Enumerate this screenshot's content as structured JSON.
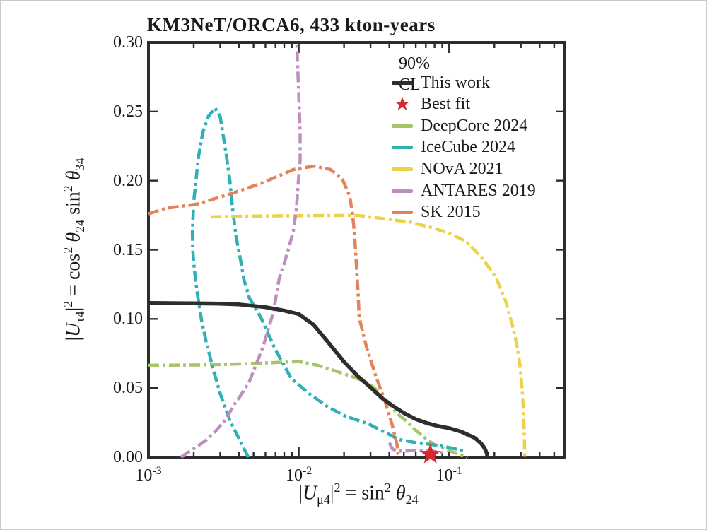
{
  "title": "KM3NeT/ORCA6, 433 kton-years",
  "legend": {
    "header": "90% CL",
    "items": [
      {
        "label": "This work",
        "color": "#2d2d2d",
        "marker": "line-solid"
      },
      {
        "label": "Best fit",
        "color": "#d7282f",
        "marker": "star"
      },
      {
        "label": "DeepCore 2024",
        "color": "#a6c468",
        "marker": "line-dashdot"
      },
      {
        "label": "IceCube 2024",
        "color": "#2eb1b6",
        "marker": "line-dashdot"
      },
      {
        "label": "NOvA 2021",
        "color": "#ecd24a",
        "marker": "line-dashdot"
      },
      {
        "label": "ANTARES 2019",
        "color": "#c08fc1",
        "marker": "line-dashdot"
      },
      {
        "label": "SK 2015",
        "color": "#e58259",
        "marker": "line-dashdot"
      }
    ]
  },
  "chart_data": {
    "type": "line",
    "title": "KM3NeT/ORCA6, 433 kton-years",
    "xlabel": "|*U*_{μ4}|^{2} = sin^{2} *θ*_{24}",
    "ylabel": "|*U*_{τ4}|^{2} = cos^{2} *θ*_{24} sin^{2} *θ*_{34}",
    "xscale": "log",
    "yscale": "linear",
    "xlim": [
      0.001,
      0.589
    ],
    "ylim": [
      0,
      0.3
    ],
    "grid": false,
    "legend_position": "upper right",
    "confidence_level": "90% CL",
    "x_ticks": [
      {
        "value": 0.001,
        "label": "10^{-3}"
      },
      {
        "value": 0.01,
        "label": "10^{-2}"
      },
      {
        "value": 0.1,
        "label": "10^{-1}"
      }
    ],
    "y_ticks": [
      {
        "value": 0.0,
        "label": "0.00"
      },
      {
        "value": 0.05,
        "label": "0.05"
      },
      {
        "value": 0.1,
        "label": "0.10"
      },
      {
        "value": 0.15,
        "label": "0.15"
      },
      {
        "value": 0.2,
        "label": "0.20"
      },
      {
        "value": 0.25,
        "label": "0.25"
      },
      {
        "value": 0.3,
        "label": "0.30"
      }
    ],
    "best_fit": {
      "name": "Best fit",
      "x": 0.075,
      "y": 0.002,
      "color": "#d7282f",
      "marker": "star"
    },
    "series": [
      {
        "name": "DeepCore 2024",
        "color": "#a6c468",
        "style": "dashdot",
        "segments": [
          [
            [
              0.001,
              0.0665
            ],
            [
              0.002,
              0.0667
            ],
            [
              0.003,
              0.067
            ],
            [
              0.005,
              0.0678
            ],
            [
              0.008,
              0.0688
            ],
            [
              0.01,
              0.0692
            ],
            [
              0.013,
              0.0668
            ],
            [
              0.016,
              0.0638
            ],
            [
              0.02,
              0.0603
            ],
            [
              0.025,
              0.0565
            ],
            [
              0.029,
              0.0537
            ],
            [
              0.035,
              0.046
            ],
            [
              0.04,
              0.0385
            ],
            [
              0.045,
              0.0317
            ],
            [
              0.052,
              0.026
            ],
            [
              0.06,
              0.0194
            ],
            [
              0.07,
              0.0135
            ],
            [
              0.08,
              0.009
            ],
            [
              0.093,
              0.0061
            ],
            [
              0.11,
              0.003
            ],
            [
              0.125,
              0.0012
            ],
            [
              0.132,
              0.0
            ]
          ]
        ]
      },
      {
        "name": "IceCube 2024",
        "color": "#2eb1b6",
        "style": "dashdot",
        "segments": [
          [
            [
              0.00462,
              0.0
            ],
            [
              0.00418,
              0.0092
            ],
            [
              0.00348,
              0.0266
            ],
            [
              0.00302,
              0.045
            ],
            [
              0.00271,
              0.0624
            ],
            [
              0.00243,
              0.0828
            ],
            [
              0.00226,
              0.0982
            ],
            [
              0.00211,
              0.1186
            ],
            [
              0.00202,
              0.1355
            ],
            [
              0.00197,
              0.15
            ],
            [
              0.00196,
              0.1626
            ],
            [
              0.002,
              0.185
            ],
            [
              0.00207,
              0.2
            ],
            [
              0.00214,
              0.216
            ],
            [
              0.0023,
              0.235
            ],
            [
              0.0025,
              0.2465
            ],
            [
              0.00277,
              0.2525
            ],
            [
              0.003,
              0.2465
            ],
            [
              0.00328,
              0.2198
            ],
            [
              0.00347,
              0.2009
            ],
            [
              0.00362,
              0.1805
            ],
            [
              0.00382,
              0.16
            ],
            [
              0.00417,
              0.138
            ],
            [
              0.0043,
              0.129
            ],
            [
              0.0047,
              0.115
            ],
            [
              0.0056,
              0.101
            ],
            [
              0.0069,
              0.079
            ],
            [
              0.0089,
              0.057
            ],
            [
              0.0114,
              0.047
            ],
            [
              0.0153,
              0.037
            ],
            [
              0.0204,
              0.0297
            ],
            [
              0.0292,
              0.024
            ],
            [
              0.0376,
              0.0179
            ],
            [
              0.0465,
              0.0128
            ],
            [
              0.0605,
              0.0105
            ],
            [
              0.086,
              0.0085
            ],
            [
              0.11,
              0.006
            ],
            [
              0.13,
              0.004
            ]
          ]
        ]
      },
      {
        "name": "NOvA 2021",
        "color": "#ecd24a",
        "style": "dashdot",
        "segments": [
          [
            [
              0.0026,
              0.1738
            ],
            [
              0.004,
              0.1742
            ],
            [
              0.008,
              0.1746
            ],
            [
              0.015,
              0.1748
            ],
            [
              0.025,
              0.1748
            ],
            [
              0.04,
              0.172
            ],
            [
              0.055,
              0.17
            ],
            [
              0.077,
              0.166
            ],
            [
              0.1,
              0.162
            ],
            [
              0.13,
              0.156
            ],
            [
              0.166,
              0.144
            ],
            [
              0.205,
              0.13
            ],
            [
              0.237,
              0.1135
            ],
            [
              0.263,
              0.096
            ],
            [
              0.283,
              0.081
            ],
            [
              0.298,
              0.064
            ],
            [
              0.308,
              0.045
            ],
            [
              0.314,
              0.028
            ],
            [
              0.317,
              0.012
            ],
            [
              0.318,
              0.0
            ]
          ]
        ]
      },
      {
        "name": "ANTARES 2019",
        "color": "#c08fc1",
        "style": "dashdot",
        "segments": [
          [
            [
              0.00165,
              0.0
            ],
            [
              0.0018,
              0.003
            ],
            [
              0.0021,
              0.0075
            ],
            [
              0.0024,
              0.012
            ],
            [
              0.0028,
              0.019
            ],
            [
              0.00325,
              0.027
            ],
            [
              0.00373,
              0.0383
            ],
            [
              0.00403,
              0.0434
            ],
            [
              0.00465,
              0.0537
            ],
            [
              0.00576,
              0.0793
            ],
            [
              0.00677,
              0.1048
            ],
            [
              0.0074,
              0.129
            ],
            [
              0.00796,
              0.1396
            ],
            [
              0.0086,
              0.1518
            ],
            [
              0.0092,
              0.1636
            ],
            [
              0.00966,
              0.1805
            ],
            [
              0.0099,
              0.1978
            ],
            [
              0.0102,
              0.2147
            ],
            [
              0.0102,
              0.235
            ],
            [
              0.01,
              0.262
            ],
            [
              0.0098,
              0.285
            ],
            [
              0.0097,
              0.3
            ]
          ],
          [
            [
              0.04,
              0.0105
            ],
            [
              0.042,
              0.006
            ],
            [
              0.045,
              0.0045
            ],
            [
              0.052,
              0.0045
            ],
            [
              0.062,
              0.005
            ],
            [
              0.07,
              0.0048
            ],
            [
              0.08,
              0.0042
            ],
            [
              0.09,
              0.0032
            ],
            [
              0.094,
              0.002
            ]
          ]
        ]
      },
      {
        "name": "SK 2015",
        "color": "#e58259",
        "style": "dashdot",
        "segments": [
          [
            [
              0.001,
              0.176
            ],
            [
              0.0013,
              0.18
            ],
            [
              0.0021,
              0.183
            ],
            [
              0.0034,
              0.19
            ],
            [
              0.0056,
              0.198
            ],
            [
              0.0092,
              0.208
            ],
            [
              0.011,
              0.2095
            ],
            [
              0.0127,
              0.2105
            ],
            [
              0.0163,
              0.208
            ],
            [
              0.0195,
              0.201
            ],
            [
              0.0218,
              0.189
            ],
            [
              0.0227,
              0.177
            ],
            [
              0.0234,
              0.1636
            ],
            [
              0.0239,
              0.148
            ],
            [
              0.0243,
              0.134
            ],
            [
              0.0248,
              0.119
            ],
            [
              0.0252,
              0.101
            ],
            [
              0.0283,
              0.079
            ],
            [
              0.0325,
              0.0588
            ],
            [
              0.0376,
              0.0399
            ],
            [
              0.0419,
              0.023
            ],
            [
              0.045,
              0.0092
            ],
            [
              0.046,
              0.0
            ]
          ]
        ]
      },
      {
        "name": "This work",
        "color": "#2d2d2d",
        "style": "solid",
        "segments": [
          [
            [
              0.001,
              0.1115
            ],
            [
              0.002,
              0.1113
            ],
            [
              0.003,
              0.111
            ],
            [
              0.004,
              0.1105
            ],
            [
              0.006,
              0.1085
            ],
            [
              0.008,
              0.106
            ],
            [
              0.01,
              0.1035
            ],
            [
              0.0125,
              0.096
            ],
            [
              0.016,
              0.082
            ],
            [
              0.02,
              0.069
            ],
            [
              0.025,
              0.058
            ],
            [
              0.029,
              0.052
            ],
            [
              0.036,
              0.0425
            ],
            [
              0.043,
              0.0365
            ],
            [
              0.05,
              0.032
            ],
            [
              0.06,
              0.0275
            ],
            [
              0.072,
              0.0245
            ],
            [
              0.085,
              0.0225
            ],
            [
              0.1,
              0.021
            ],
            [
              0.12,
              0.0185
            ],
            [
              0.148,
              0.014
            ],
            [
              0.163,
              0.01
            ],
            [
              0.172,
              0.0066
            ],
            [
              0.178,
              0.003
            ],
            [
              0.18,
              0.0
            ]
          ]
        ]
      }
    ]
  }
}
